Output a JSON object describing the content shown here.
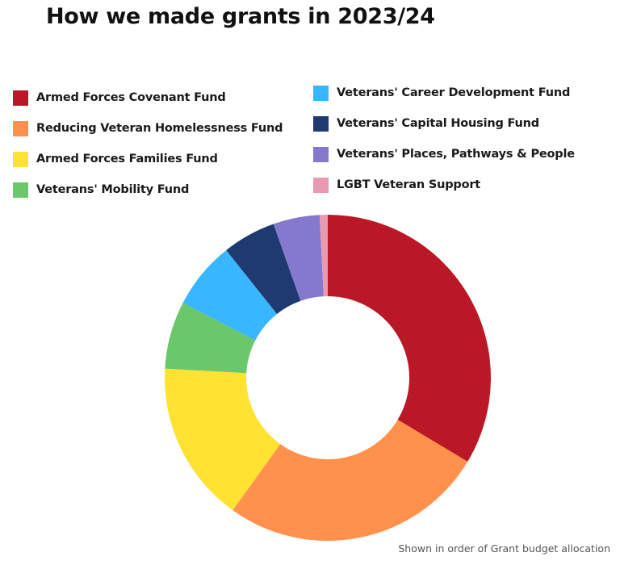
{
  "title": "How we made grants in 2023/24",
  "footnote": "Shown in order of Grant budget allocation",
  "legend": {
    "left": [
      {
        "label": "Armed Forces Covenant Fund",
        "color": "#BA1826"
      },
      {
        "label": "Reducing Veteran Homelessness Fund",
        "color": "#FF914D"
      },
      {
        "label": "Armed Forces Families Fund",
        "color": "#FFE232"
      },
      {
        "label": "Veterans' Mobility Fund",
        "color": "#6BC76B"
      }
    ],
    "right": [
      {
        "label": "Veterans' Career Development Fund",
        "color": "#38B6FF"
      },
      {
        "label": "Veterans' Capital Housing Fund",
        "color": "#1E3A70"
      },
      {
        "label": "Veterans' Places, Pathways & People",
        "color": "#8579CE"
      },
      {
        "label": "LGBT Veteran Support",
        "color": "#E89AB0"
      }
    ]
  },
  "chart_data": {
    "type": "pie",
    "subtype": "donut",
    "title": "How we made grants in 2023/24",
    "categories": [
      "Armed Forces Covenant Fund",
      "Reducing Veteran Homelessness Fund",
      "Armed Forces Families Fund",
      "Veterans' Mobility Fund",
      "Veterans' Career Development Fund",
      "Veterans' Capital Housing Fund",
      "Veterans' Places, Pathways & People",
      "LGBT Veteran Support"
    ],
    "values": [
      33.6,
      26.3,
      16.0,
      6.7,
      6.7,
      5.3,
      4.6,
      0.8
    ],
    "unit": "% of grant budget (estimated from slice angles)",
    "colors": [
      "#BA1826",
      "#FF914D",
      "#FFE232",
      "#6BC76B",
      "#38B6FF",
      "#1E3A70",
      "#8579CE",
      "#E89AB0"
    ],
    "start_angle": "12 o'clock",
    "direction": "clockwise",
    "legend_position": "top, two columns",
    "annotation": "Shown in order of Grant budget allocation"
  }
}
